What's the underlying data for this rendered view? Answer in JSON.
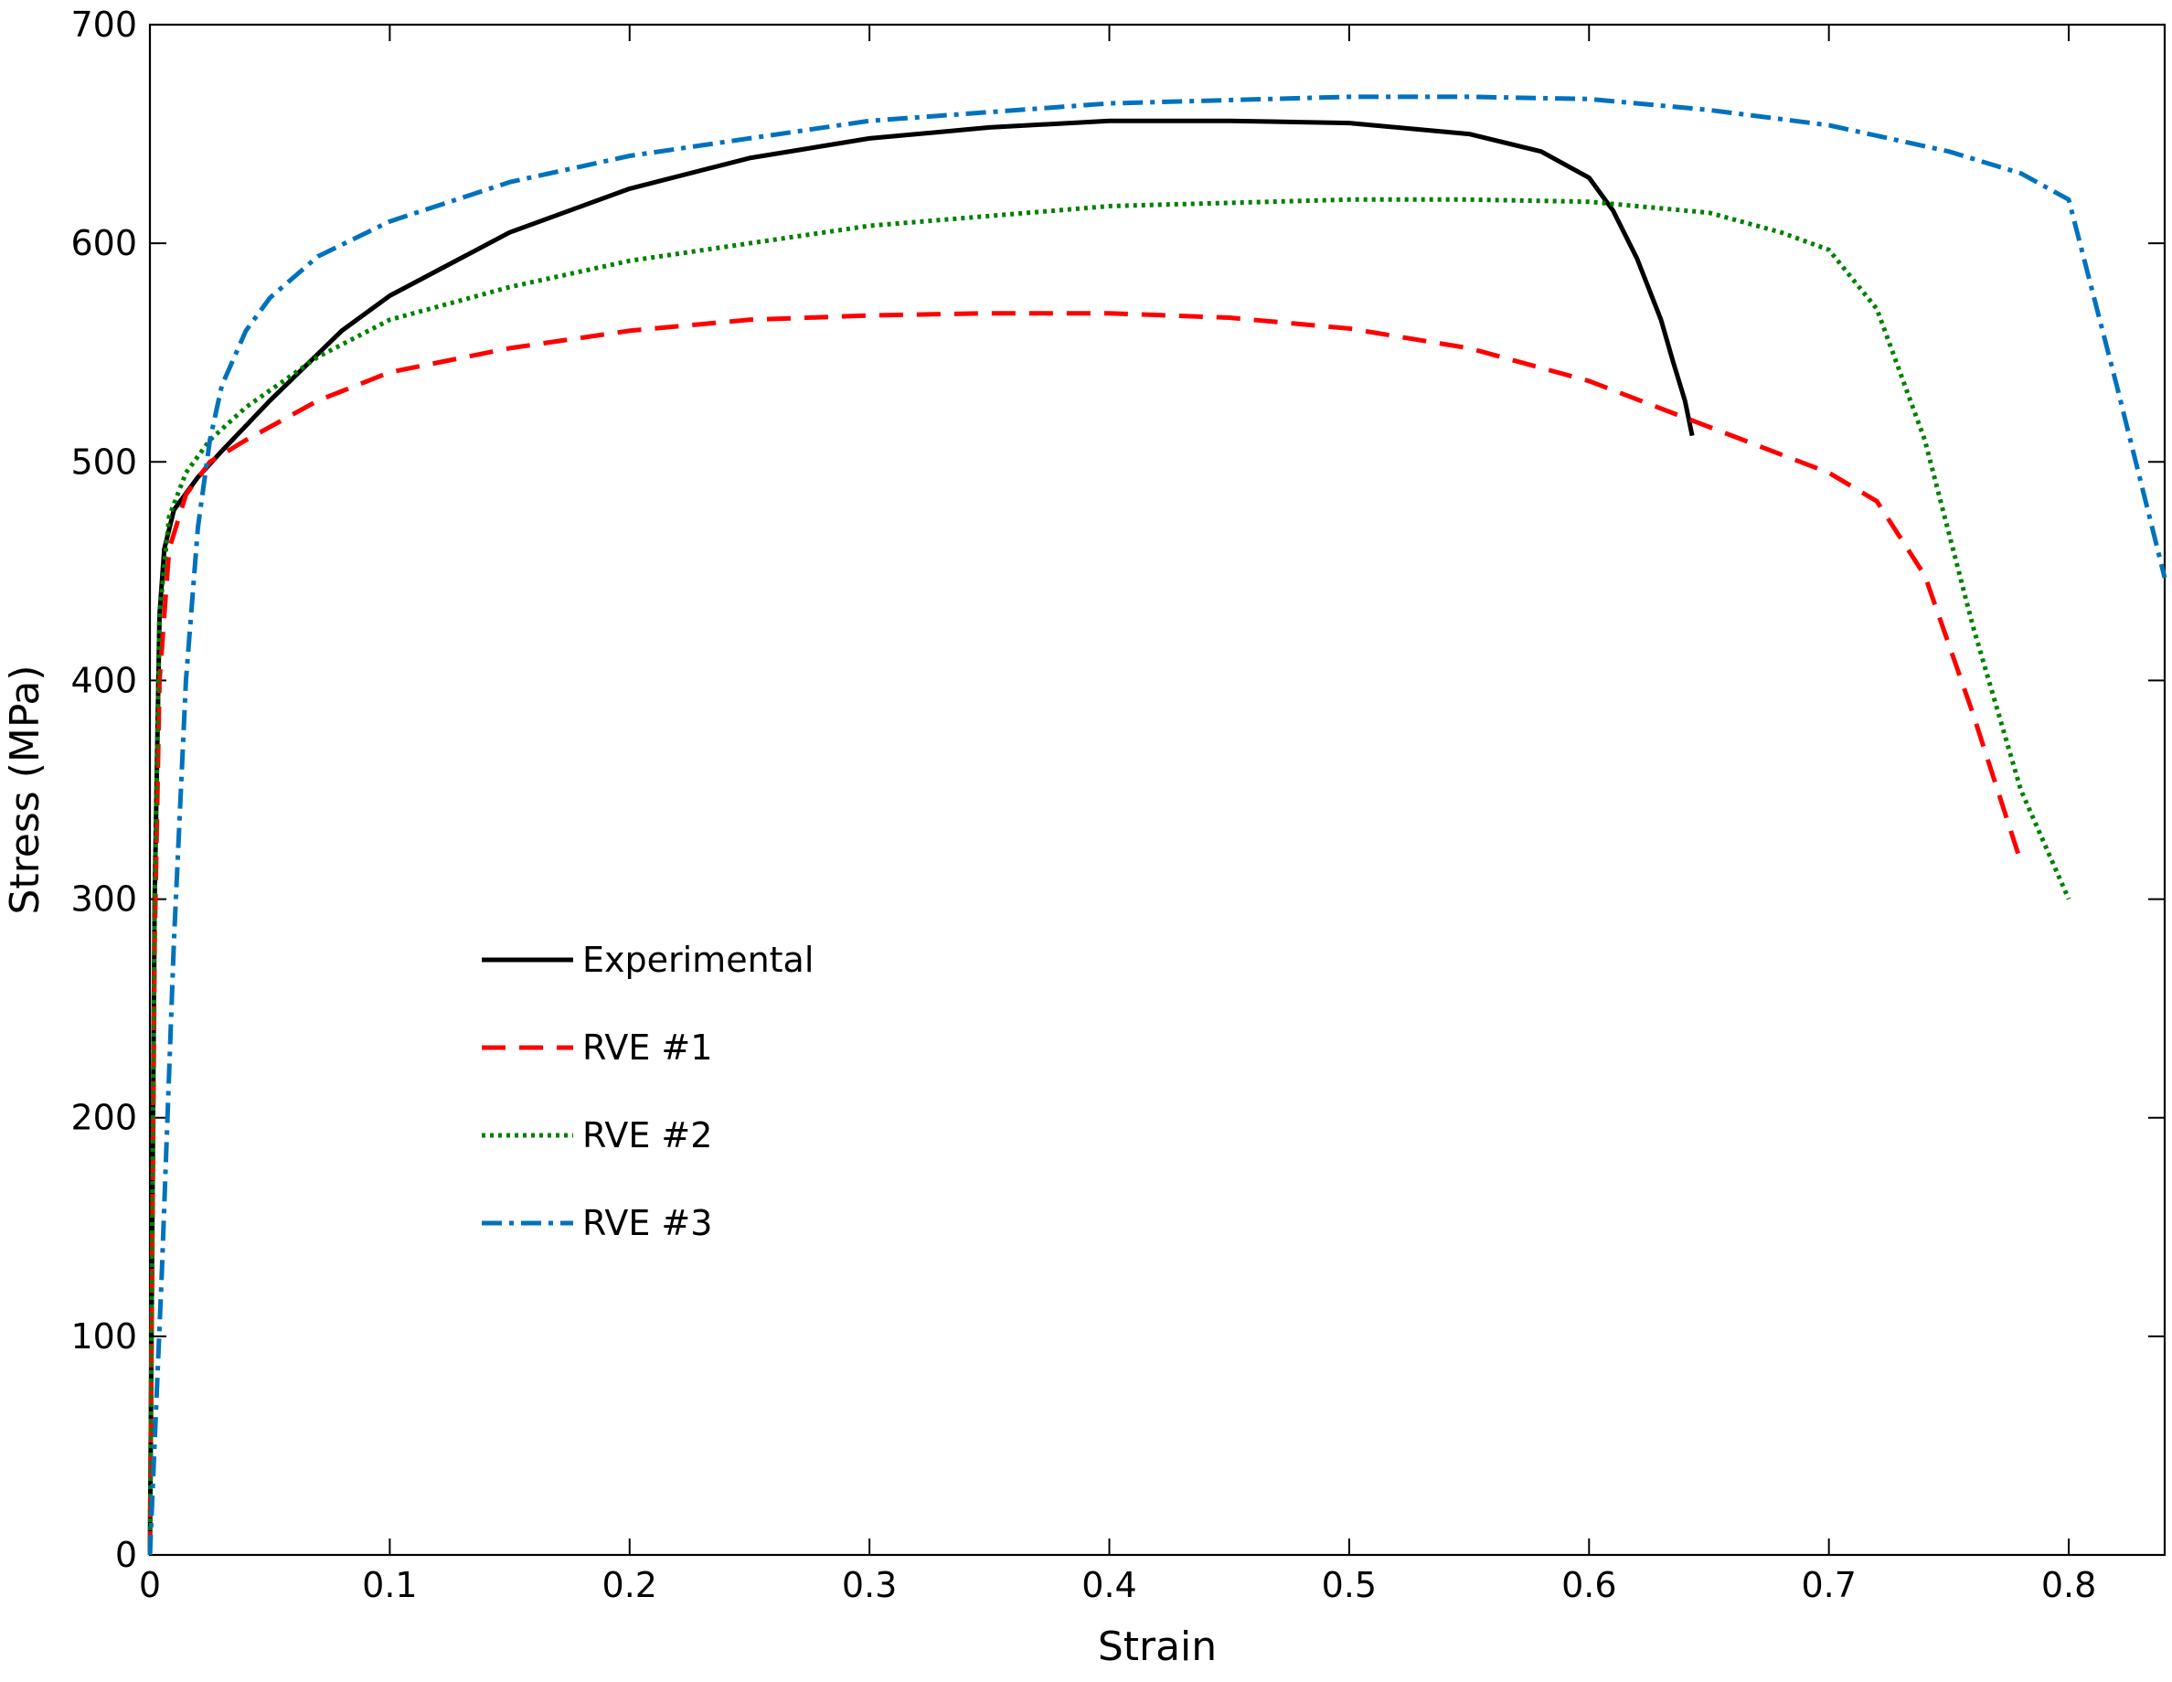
{
  "chart_data": {
    "type": "line",
    "xlabel": "Strain",
    "ylabel": "Stress (MPa)",
    "xlim": [
      0,
      0.84
    ],
    "ylim": [
      0,
      700
    ],
    "xticks": [
      0,
      0.1,
      0.2,
      0.3,
      0.4,
      0.5,
      0.6,
      0.7,
      0.8
    ],
    "xtick_labels": [
      "0",
      "0.1",
      "0.2",
      "0.3",
      "0.4",
      "0.5",
      "0.6",
      "0.7",
      "0.8"
    ],
    "yticks": [
      0,
      100,
      200,
      300,
      400,
      500,
      600,
      700
    ],
    "ytick_labels": [
      "0",
      "100",
      "200",
      "300",
      "400",
      "500",
      "600",
      "700"
    ],
    "grid": false,
    "legend_position": "center-left",
    "series": [
      {
        "name": "Experimental",
        "color": "#000000",
        "style": "solid",
        "x": [
          0,
          0.002,
          0.004,
          0.006,
          0.01,
          0.02,
          0.03,
          0.05,
          0.08,
          0.1,
          0.15,
          0.2,
          0.25,
          0.3,
          0.35,
          0.4,
          0.45,
          0.5,
          0.55,
          0.58,
          0.6,
          0.61,
          0.62,
          0.63,
          0.635,
          0.64,
          0.643
        ],
        "y": [
          0,
          300,
          430,
          460,
          478,
          493,
          505,
          528,
          560,
          576,
          605,
          625,
          639,
          648,
          653,
          656,
          656,
          655,
          650,
          642,
          630,
          615,
          593,
          565,
          546,
          528,
          512
        ]
      },
      {
        "name": "RVE #1",
        "color": "#ff0000",
        "style": "dashed",
        "x": [
          0,
          0.002,
          0.004,
          0.008,
          0.015,
          0.025,
          0.04,
          0.07,
          0.1,
          0.15,
          0.2,
          0.25,
          0.3,
          0.35,
          0.4,
          0.45,
          0.5,
          0.55,
          0.6,
          0.65,
          0.7,
          0.72,
          0.74,
          0.76,
          0.78
        ],
        "y": [
          0,
          280,
          400,
          460,
          485,
          500,
          510,
          528,
          541,
          552,
          560,
          565,
          567,
          568,
          568,
          566,
          561,
          552,
          537,
          516,
          495,
          482,
          448,
          385,
          317
        ]
      },
      {
        "name": "RVE #2",
        "color": "#008000",
        "style": "dotted",
        "x": [
          0,
          0.002,
          0.004,
          0.008,
          0.015,
          0.025,
          0.04,
          0.07,
          0.1,
          0.15,
          0.2,
          0.3,
          0.4,
          0.5,
          0.55,
          0.6,
          0.65,
          0.68,
          0.7,
          0.72,
          0.74,
          0.76,
          0.78,
          0.8
        ],
        "y": [
          0,
          300,
          430,
          475,
          495,
          510,
          525,
          548,
          565,
          580,
          592,
          608,
          617,
          620,
          620,
          619,
          614,
          605,
          597,
          570,
          510,
          425,
          350,
          300
        ]
      },
      {
        "name": "RVE #3",
        "color": "#0072bd",
        "style": "dashdot",
        "x": [
          0,
          0.005,
          0.01,
          0.015,
          0.02,
          0.025,
          0.03,
          0.04,
          0.05,
          0.07,
          0.1,
          0.15,
          0.2,
          0.3,
          0.4,
          0.5,
          0.55,
          0.6,
          0.65,
          0.7,
          0.75,
          0.78,
          0.8,
          0.82,
          0.84
        ],
        "y": [
          0,
          130,
          280,
          400,
          470,
          510,
          535,
          560,
          575,
          594,
          610,
          628,
          640,
          656,
          664,
          667,
          667,
          666,
          661,
          654,
          642,
          632,
          620,
          535,
          447
        ]
      }
    ]
  }
}
